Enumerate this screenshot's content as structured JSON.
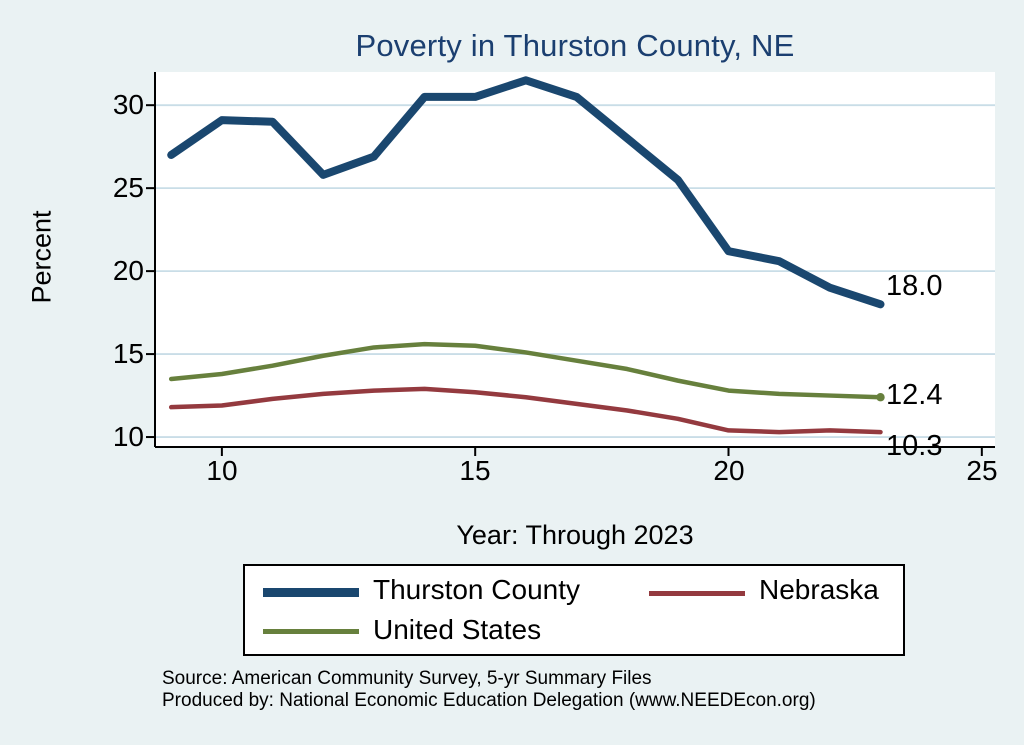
{
  "chart_data": {
    "type": "line",
    "title": "Poverty in Thurston County, NE",
    "xlabel": "Year: Through 2023",
    "ylabel": "Percent",
    "x": [
      9,
      10,
      11,
      12,
      13,
      14,
      15,
      16,
      17,
      18,
      19,
      20,
      21,
      22,
      23
    ],
    "x_ticks": [
      10,
      15,
      20,
      25
    ],
    "y_ticks": [
      10,
      15,
      20,
      25,
      30
    ],
    "xlim": [
      8.68,
      25.26
    ],
    "ylim": [
      9.4,
      32
    ],
    "grid": true,
    "grid_color": "#c9dde7",
    "legend_position": "bottom",
    "series": [
      {
        "name": "Thurston County",
        "color": "#1a476f",
        "width": 8,
        "values": [
          27.0,
          29.1,
          29.0,
          25.8,
          26.9,
          30.5,
          30.5,
          31.5,
          30.5,
          28.0,
          25.5,
          21.2,
          20.6,
          19.0,
          18.0
        ],
        "end_label": "18.0"
      },
      {
        "name": "Nebraska",
        "color": "#943a3f",
        "width": 4.5,
        "values": [
          11.8,
          11.9,
          12.3,
          12.6,
          12.8,
          12.9,
          12.7,
          12.4,
          12.0,
          11.6,
          11.1,
          10.4,
          10.3,
          10.4,
          10.3
        ],
        "end_label": "10.3"
      },
      {
        "name": "United States",
        "color": "#67803d",
        "width": 4.5,
        "marker_end": true,
        "values": [
          13.5,
          13.8,
          14.3,
          14.9,
          15.4,
          15.6,
          15.5,
          15.1,
          14.6,
          14.1,
          13.4,
          12.8,
          12.6,
          12.5,
          12.4
        ],
        "end_label": "12.4"
      }
    ]
  },
  "legend": {
    "entries": [
      {
        "label": "Thurston County",
        "color": "#1a476f"
      },
      {
        "label": "Nebraska",
        "color": "#943a3f"
      },
      {
        "label": "United States",
        "color": "#67803d"
      }
    ]
  },
  "footer": {
    "source": "Source: American Community Survey, 5-yr Summary Files",
    "produced": "Produced by: National Economic Education Delegation (www.NEEDEcon.org)"
  }
}
